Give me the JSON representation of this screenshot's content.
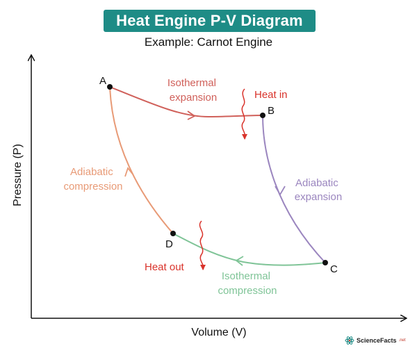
{
  "header": {
    "title": "Heat Engine P-V Diagram",
    "subtitle": "Example: Carnot Engine"
  },
  "axes": {
    "x_label": "Volume (V)",
    "y_label": "Pressure (P)"
  },
  "points": {
    "A": "A",
    "B": "B",
    "C": "C",
    "D": "D"
  },
  "processes": {
    "isothermal_expansion": [
      "Isothermal",
      "expansion"
    ],
    "adiabatic_expansion": [
      "Adiabatic",
      "expansion"
    ],
    "isothermal_compression": [
      "Isothermal",
      "compression"
    ],
    "adiabatic_compression": [
      "Adiabatic",
      "compression"
    ]
  },
  "heat": {
    "in": "Heat in",
    "out": "Heat out"
  },
  "colors": {
    "title_bg": "#1e8c86",
    "isothermal_expansion": "#d0605a",
    "adiabatic_expansion": "#9b86bf",
    "isothermal_compression": "#7fc497",
    "adiabatic_compression": "#e89a76",
    "heat": "#d9332b"
  },
  "logo": {
    "brand": "ScienceFacts",
    "tld": ".net"
  }
}
